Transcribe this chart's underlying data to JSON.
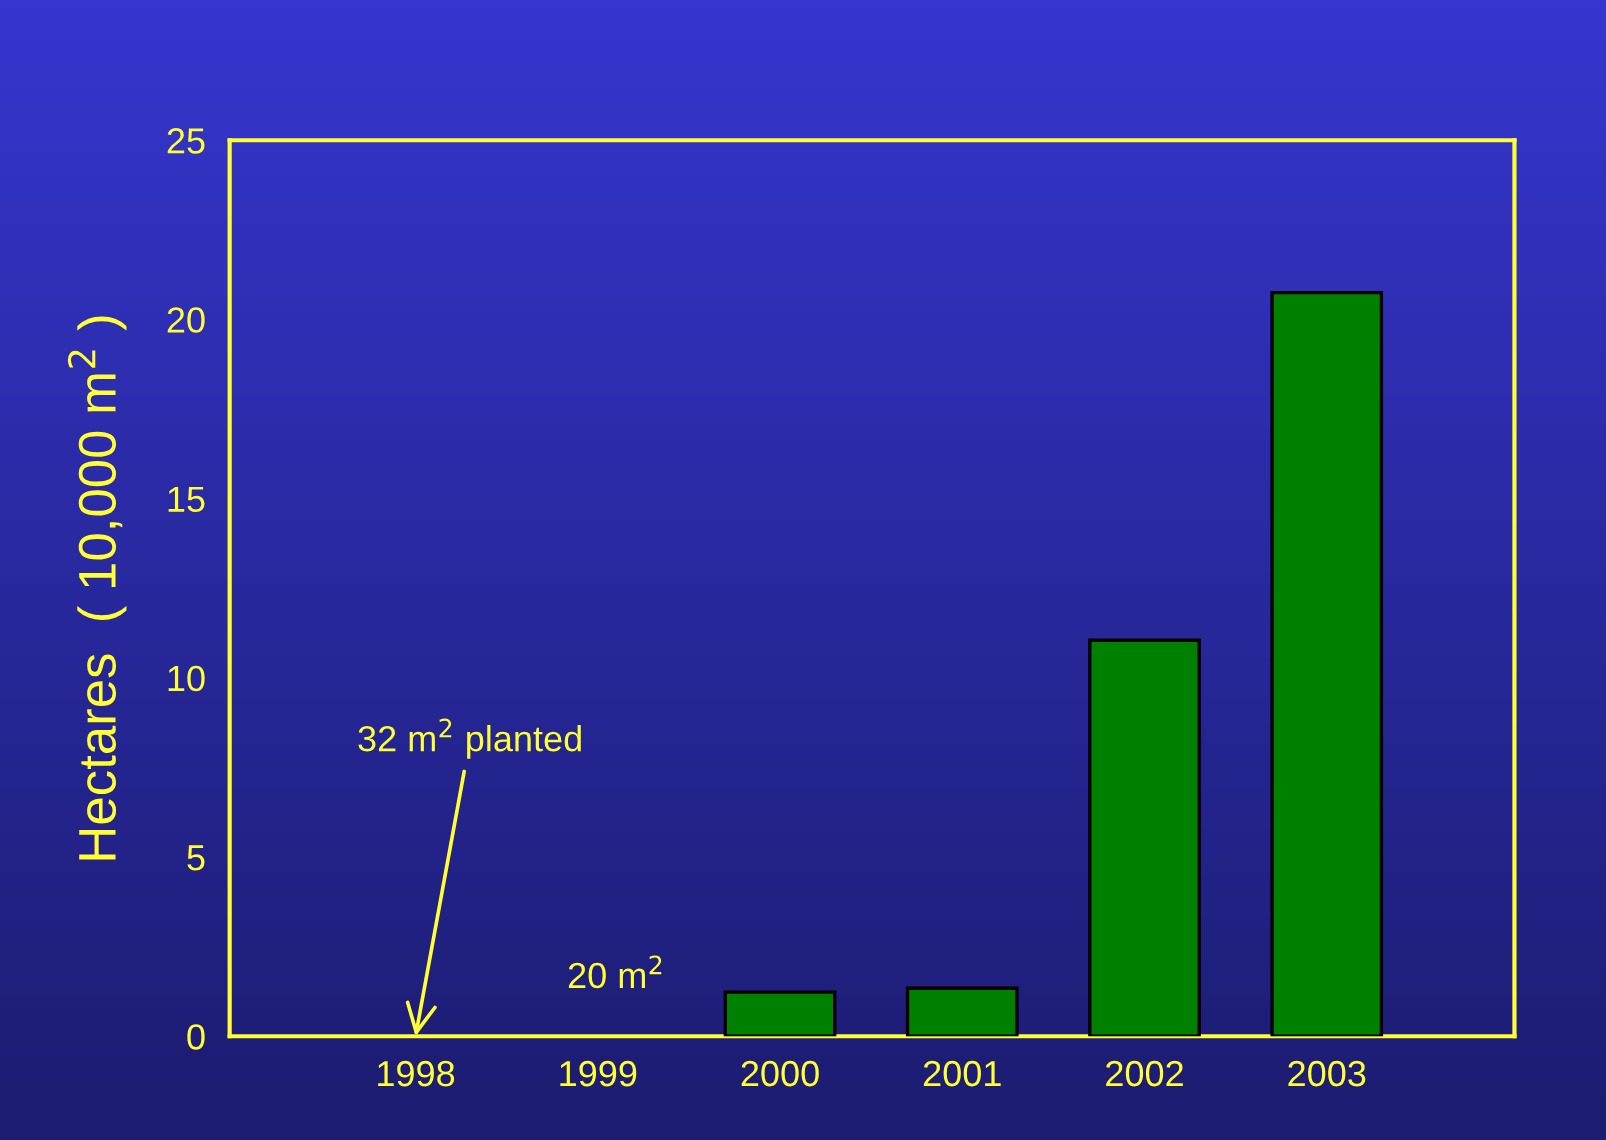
{
  "chart_data": {
    "type": "bar",
    "ylabel": "Hectares  ( 10,000 m$^{2}$ )",
    "categories": [
      "1998",
      "1999",
      "2000",
      "2001",
      "2002",
      "2003"
    ],
    "values": [
      null,
      null,
      1.23,
      1.34,
      11.05,
      20.75
    ],
    "color": "#008000",
    "ylim": [
      0,
      25
    ],
    "yticks": [
      0,
      5,
      10,
      15,
      20,
      25
    ],
    "grid": false,
    "annotations": [
      "32 m$^{2}$ planted",
      "20 m$^{2}$"
    ]
  }
}
